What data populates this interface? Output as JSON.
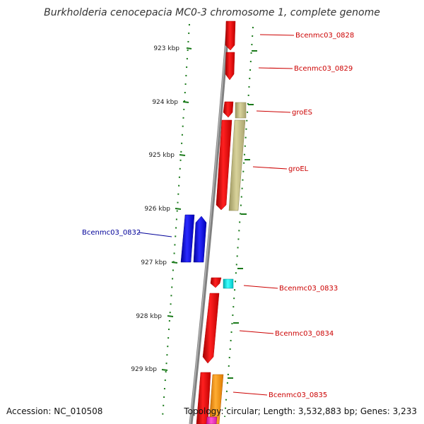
{
  "title": "Burkholderia cenocepacia MC0-3 chromosome 1, complete genome",
  "accession_text": "Accession: NC_010508",
  "topology_text": "Topology: circular; Length: 3,532,883 bp; Genes: 3,233",
  "ruler": [
    {
      "label": "923 kbp"
    },
    {
      "label": "924 kbp"
    },
    {
      "label": "925 kbp"
    },
    {
      "label": "926 kbp"
    },
    {
      "label": "927 kbp"
    },
    {
      "label": "928 kbp"
    },
    {
      "label": "929 kbp"
    }
  ],
  "genes": [
    {
      "name": "Bcenmc03_0828",
      "color": "#ff0000",
      "label_color": "#cc0000"
    },
    {
      "name": "Bcenmc03_0829",
      "color": "#ff0000",
      "label_color": "#cc0000"
    },
    {
      "name": "groES",
      "color": "#ff0000",
      "label_color": "#cc0000"
    },
    {
      "name": "groEL",
      "color": "#ff0000",
      "label_color": "#cc0000"
    },
    {
      "name": "Bcenmc03_0832",
      "color": "#0000ee",
      "label_color": "#000099"
    },
    {
      "name": "Bcenmc03_0833",
      "color": "#ff0000",
      "label_color": "#cc0000"
    },
    {
      "name": "Bcenmc03_0834",
      "color": "#ff0000",
      "label_color": "#cc0000"
    },
    {
      "name": "Bcenmc03_0835",
      "color": "#ff0000",
      "label_color": "#cc0000"
    }
  ],
  "colors": {
    "backbone": "#808080",
    "tick": "#1a7a1a",
    "red_gene": "#ff0000",
    "tan_feature": "#c8c080",
    "blue_gene": "#0000ee",
    "cyan_feature": "#00e5e5",
    "orange_feature": "#ff9900",
    "magenta_feature": "#ff33cc"
  }
}
